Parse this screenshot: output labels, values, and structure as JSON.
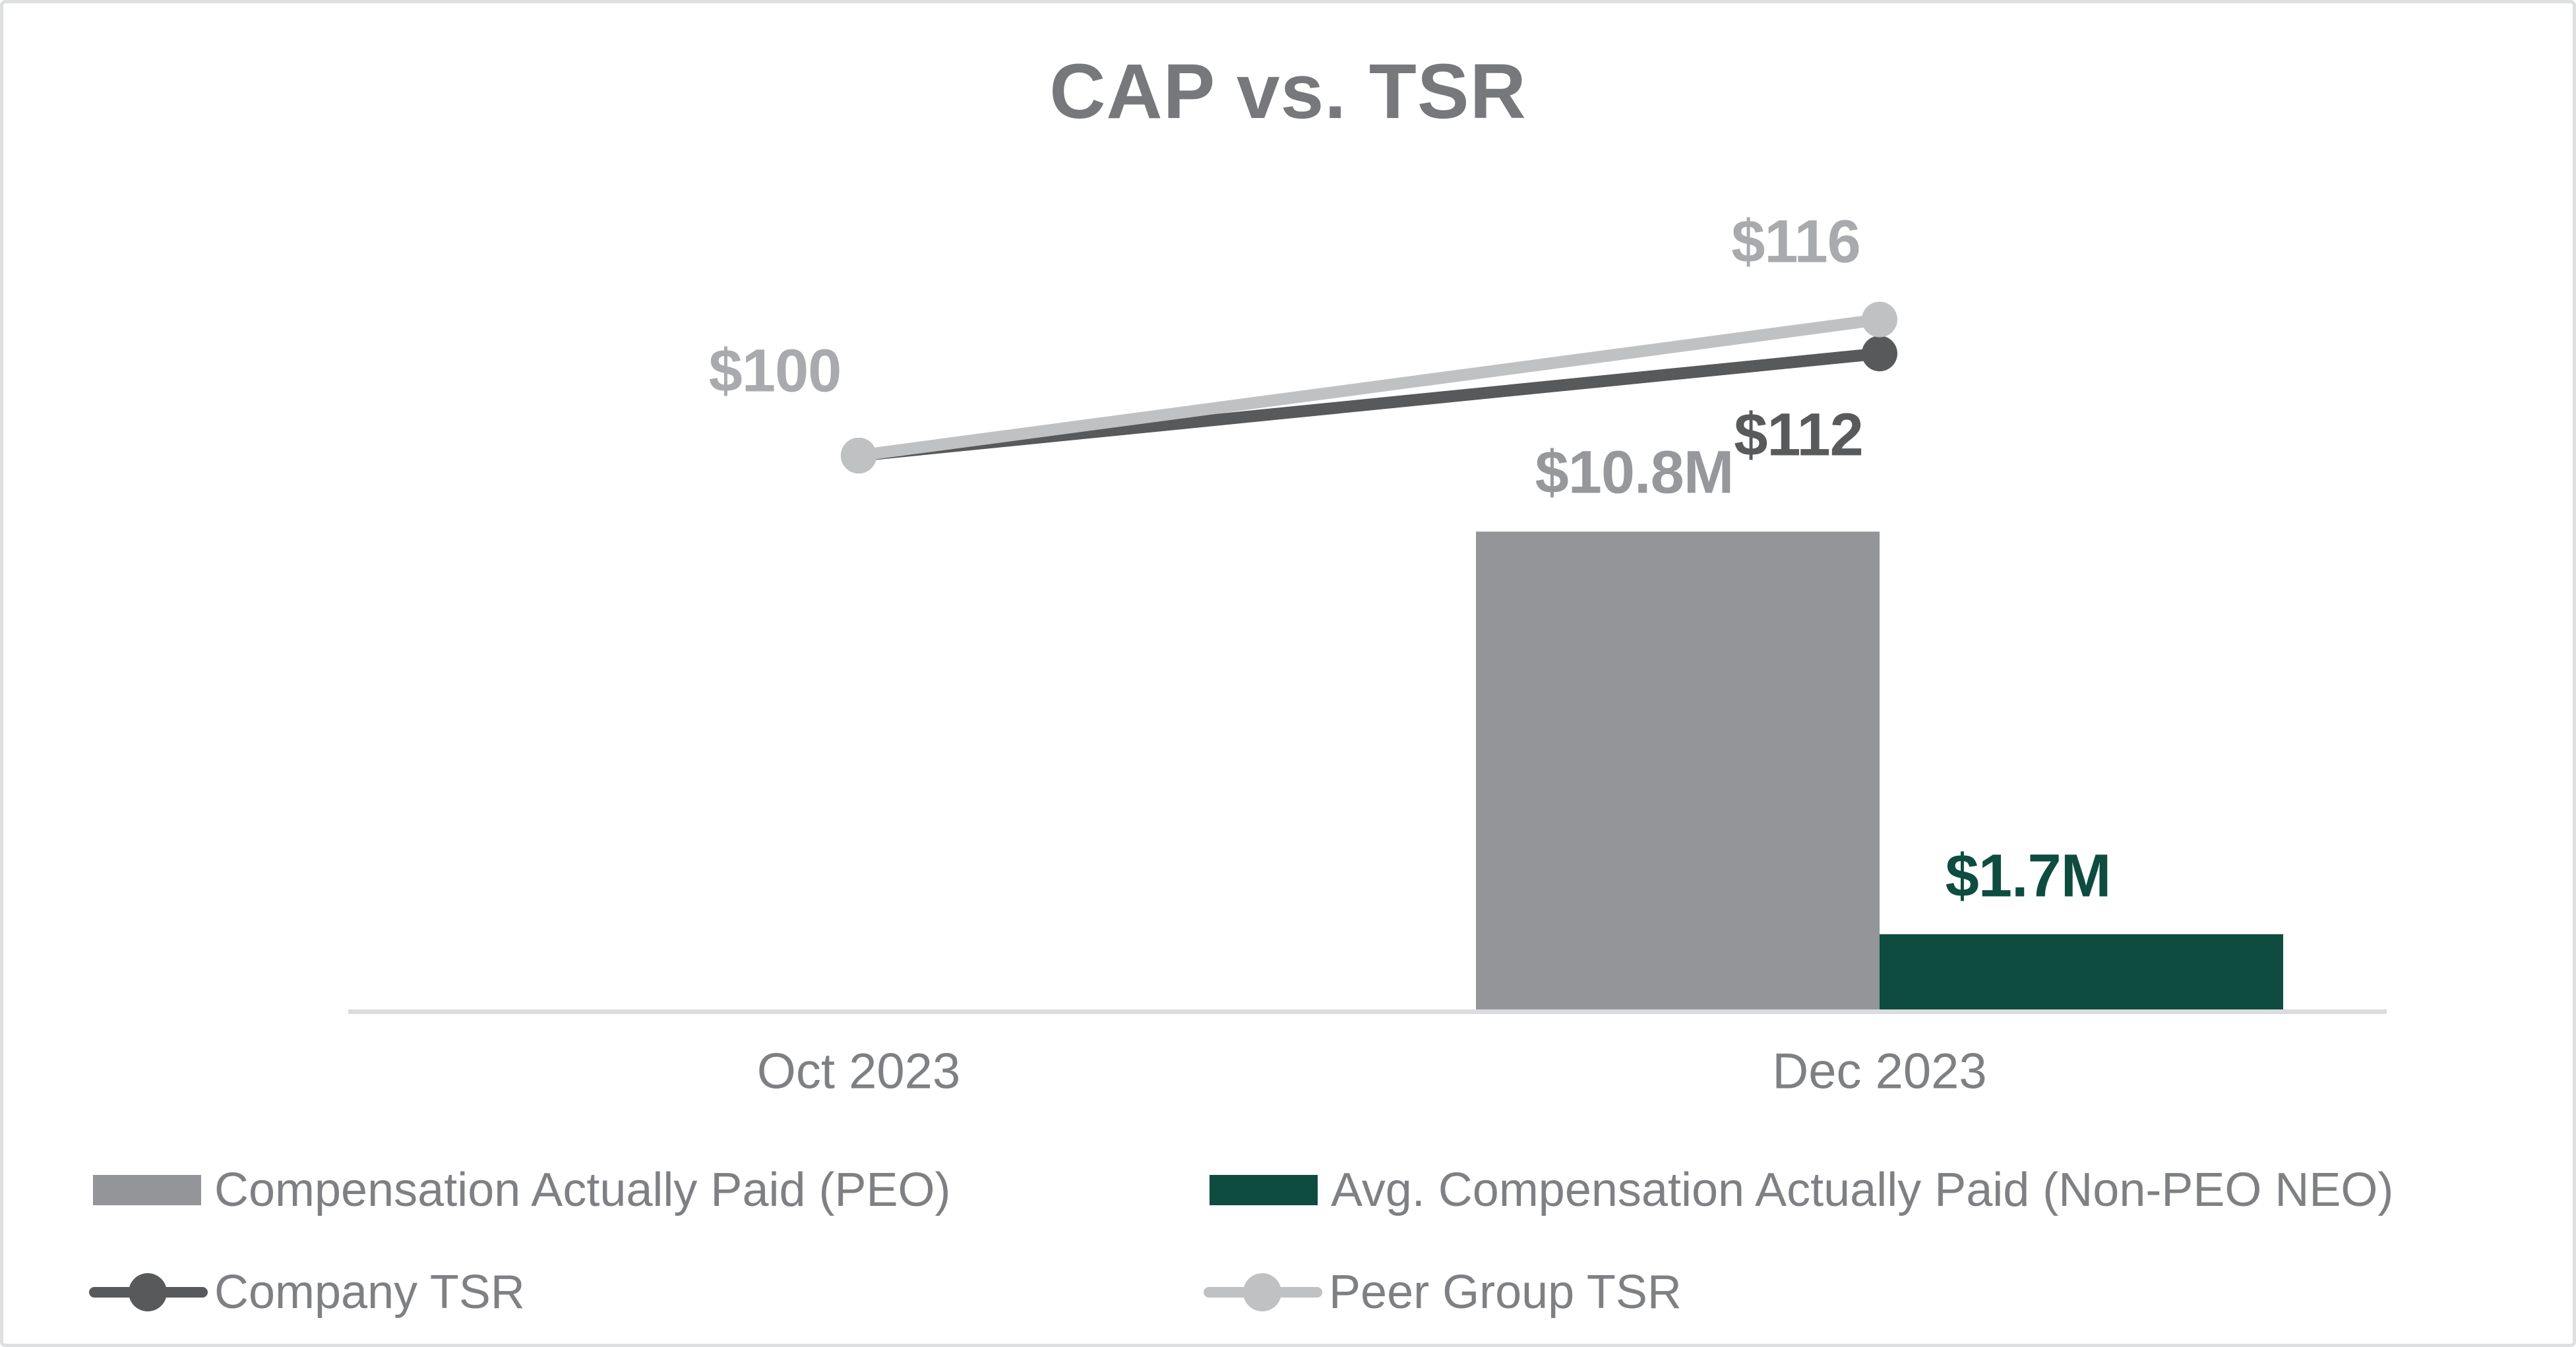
{
  "chart_data": {
    "type": "combo",
    "title": "CAP vs. TSR",
    "categories": [
      "Oct 2023",
      "Dec 2023"
    ],
    "series": [
      {
        "name": "Compensation Actually Paid (PEO)",
        "type": "bar",
        "color": "#939598",
        "values": [
          null,
          10.8
        ],
        "value_labels": [
          "",
          "$10.8M"
        ]
      },
      {
        "name": "Avg. Compensation Actually Paid (Non-PEO NEO)",
        "type": "bar",
        "color": "#0e4c40",
        "values": [
          null,
          1.7
        ],
        "value_labels": [
          "",
          "$1.7M"
        ]
      },
      {
        "name": "Company TSR",
        "type": "line",
        "color": "#58595b",
        "values": [
          100,
          112
        ],
        "value_labels": [
          "$100",
          "$112"
        ]
      },
      {
        "name": "Peer Group TSR",
        "type": "line",
        "color": "#bfc1c3",
        "values": [
          100,
          116
        ],
        "value_labels": [
          "$100",
          "$116"
        ]
      }
    ],
    "axis_color": "#dbdcdd",
    "bar_unit": "millions USD",
    "legend_position": "bottom",
    "grid": false,
    "ylim_bars_M": [
      0,
      10.8
    ],
    "tsr_points_shown": {
      "oct_shared": "$100",
      "dec_company": "$112",
      "dec_peer": "$116"
    }
  }
}
